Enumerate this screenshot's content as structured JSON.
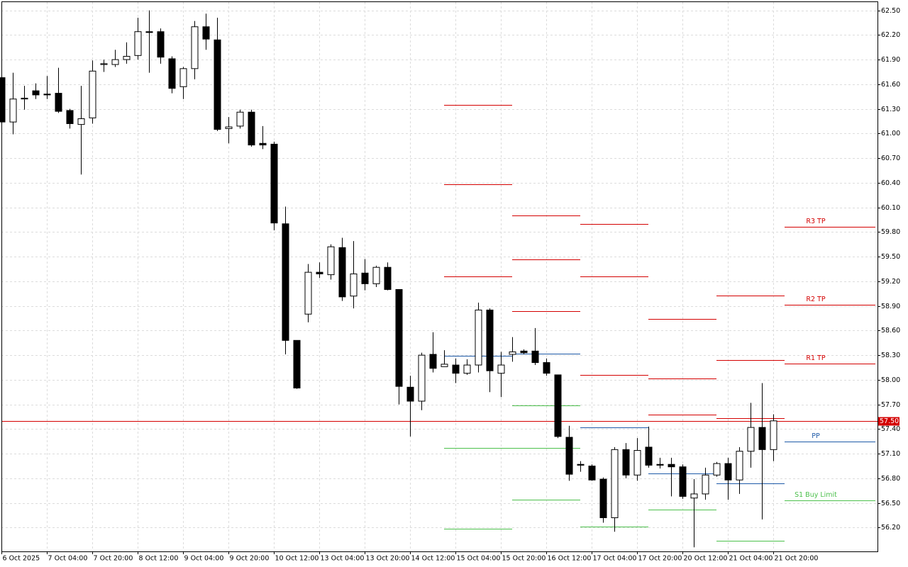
{
  "chart_data": {
    "type": "candlestick",
    "categories": [
      "6 Oct 2025",
      null,
      null,
      null,
      "7 Oct 04:00",
      null,
      null,
      null,
      "7 Oct 20:00",
      null,
      null,
      null,
      "8 Oct 12:00",
      null,
      null,
      null,
      "9 Oct 04:00",
      null,
      null,
      null,
      "9 Oct 20:00",
      null,
      null,
      null,
      "10 Oct 12:00",
      null,
      null,
      null,
      "13 Oct 04:00",
      null,
      null,
      null,
      "13 Oct 20:00",
      null,
      null,
      null,
      "14 Oct 12:00",
      null,
      null,
      null,
      "15 Oct 04:00",
      null,
      null,
      null,
      "15 Oct 20:00",
      null,
      null,
      null,
      "16 Oct 12:00",
      null,
      null,
      null,
      "17 Oct 04:00",
      null,
      null,
      null,
      "17 Oct 20:00",
      null,
      null,
      null,
      "20 Oct 12:00",
      null,
      null,
      null,
      "21 Oct 04:00",
      null,
      null,
      null,
      "21 Oct 20:00"
    ],
    "open": [
      61.68,
      61.14,
      61.42,
      61.52,
      61.48,
      61.49,
      61.28,
      61.11,
      61.19,
      61.84,
      61.84,
      61.9,
      61.95,
      62.24,
      62.24,
      61.91,
      61.57,
      61.79,
      62.3,
      62.14,
      61.06,
      61.09,
      61.26,
      60.88,
      60.87,
      59.9,
      58.48,
      58.8,
      59.31,
      59.28,
      59.61,
      59.02,
      59.3,
      59.17,
      59.37,
      59.1,
      57.91,
      57.74,
      58.31,
      58.16,
      58.18,
      58.08,
      58.18,
      58.85,
      58.08,
      58.31,
      58.35,
      58.35,
      58.21,
      58.06,
      57.3,
      56.97,
      56.95,
      56.79,
      56.32,
      57.15,
      56.84,
      57.18,
      56.97,
      56.97,
      56.94,
      56.56,
      56.61,
      56.84,
      56.98,
      56.78,
      57.13,
      57.42,
      57.15
    ],
    "high": [
      61.72,
      61.74,
      61.58,
      61.61,
      61.7,
      61.8,
      61.3,
      61.58,
      61.89,
      61.9,
      62.02,
      62.11,
      62.41,
      62.5,
      62.28,
      61.94,
      61.81,
      62.37,
      62.46,
      62.41,
      61.2,
      61.29,
      61.29,
      61.09,
      60.9,
      60.11,
      58.48,
      59.41,
      59.43,
      59.65,
      59.73,
      59.69,
      59.47,
      59.39,
      59.43,
      59.1,
      58.05,
      58.33,
      58.58,
      58.36,
      58.26,
      58.25,
      58.94,
      58.87,
      58.34,
      58.52,
      58.37,
      58.63,
      58.26,
      58.06,
      57.44,
      57.01,
      56.97,
      56.81,
      57.18,
      57.23,
      57.29,
      57.43,
      57.05,
      57.05,
      56.97,
      56.79,
      56.93,
      57.0,
      57.05,
      57.18,
      57.72,
      57.96,
      57.58
    ],
    "low": [
      61.12,
      60.99,
      61.29,
      61.42,
      61.42,
      61.25,
      61.06,
      60.5,
      61.12,
      61.75,
      61.81,
      61.85,
      61.9,
      61.74,
      61.85,
      61.49,
      61.42,
      61.66,
      62.02,
      61.03,
      60.88,
      61.06,
      60.84,
      60.81,
      59.82,
      58.31,
      57.89,
      58.7,
      59.24,
      59.22,
      58.96,
      58.87,
      59.09,
      59.13,
      59.09,
      57.7,
      57.31,
      57.63,
      58.09,
      58.18,
      57.96,
      58.06,
      58.09,
      57.85,
      57.79,
      58.22,
      58.31,
      58.18,
      58.05,
      57.29,
      56.77,
      56.88,
      56.77,
      56.26,
      56.15,
      56.8,
      56.77,
      56.93,
      56.92,
      56.58,
      56.55,
      55.96,
      56.54,
      56.82,
      56.54,
      56.61,
      56.93,
      56.3,
      57.01
    ],
    "close": [
      61.14,
      61.42,
      61.43,
      61.47,
      61.47,
      61.27,
      61.12,
      61.18,
      61.76,
      61.85,
      61.9,
      61.94,
      62.24,
      62.23,
      61.93,
      61.55,
      61.79,
      62.3,
      62.15,
      61.05,
      61.08,
      61.26,
      60.86,
      60.86,
      59.91,
      58.48,
      57.9,
      59.31,
      59.29,
      59.62,
      59.01,
      59.29,
      59.17,
      59.37,
      59.1,
      57.92,
      57.74,
      58.3,
      58.14,
      58.19,
      58.08,
      58.18,
      58.85,
      58.11,
      58.18,
      58.34,
      58.33,
      58.21,
      58.08,
      57.31,
      56.85,
      56.96,
      56.78,
      56.32,
      57.15,
      56.84,
      57.14,
      56.96,
      56.96,
      56.94,
      56.58,
      56.61,
      56.84,
      56.98,
      56.78,
      57.13,
      57.42,
      57.15,
      57.5
    ],
    "colors": {
      "up": "#ffffff",
      "down": "#000000",
      "outline": "#000000",
      "resistance": "#d40000",
      "pivot": "#1e5aa8",
      "support": "#4cc04c"
    },
    "levels": [
      {
        "from": 39,
        "to": 45,
        "resistance": [
          61.35,
          60.38,
          59.26
        ],
        "pivot": [
          58.29
        ],
        "support": [
          57.17,
          56.19
        ]
      },
      {
        "from": 45,
        "to": 51,
        "resistance": [
          60.0,
          59.47,
          58.84
        ],
        "pivot": [
          58.32
        ],
        "support": [
          57.69,
          57.17,
          56.54
        ]
      },
      {
        "from": 51,
        "to": 57,
        "resistance": [
          59.9,
          59.26,
          58.06
        ],
        "pivot": [
          57.42
        ],
        "support": [
          56.21
        ]
      },
      {
        "from": 57,
        "to": 63,
        "resistance": [
          58.74,
          58.02,
          57.58
        ],
        "pivot": [
          56.86
        ],
        "support": [
          56.42
        ]
      },
      {
        "from": 63,
        "to": 69,
        "resistance": [
          59.03,
          58.24,
          57.53
        ],
        "pivot": [
          56.74
        ],
        "support": [
          56.04
        ]
      },
      {
        "from": 69,
        "to": 77,
        "resistance": [
          59.86,
          58.91,
          58.2
        ],
        "resistance_labels": [
          "R3 TP",
          "R2 TP",
          "R1 TP"
        ],
        "pivot": [
          57.25
        ],
        "pivot_labels": [
          "PP"
        ],
        "support": [
          56.53
        ],
        "support_labels": [
          "S1 Buy Limit"
        ]
      }
    ],
    "current_price": {
      "value": 57.5,
      "label": "57.50",
      "color": "#d40000"
    },
    "ylim": [
      55.91,
      62.6
    ],
    "yticks": [
      {
        "value": 62.5,
        "label": "62.50"
      },
      {
        "value": 62.2,
        "label": "62.20"
      },
      {
        "value": 61.9,
        "label": "61.90"
      },
      {
        "value": 61.6,
        "label": "61.60"
      },
      {
        "value": 61.3,
        "label": "61.30"
      },
      {
        "value": 61.0,
        "label": "61.00"
      },
      {
        "value": 60.7,
        "label": "60.70"
      },
      {
        "value": 60.4,
        "label": "60.40"
      },
      {
        "value": 60.1,
        "label": "60.10"
      },
      {
        "value": 59.8,
        "label": "59.80"
      },
      {
        "value": 59.5,
        "label": "59.50"
      },
      {
        "value": 59.2,
        "label": "59.20"
      },
      {
        "value": 58.9,
        "label": "58.90"
      },
      {
        "value": 58.6,
        "label": "58.60"
      },
      {
        "value": 58.3,
        "label": "58.30"
      },
      {
        "value": 58.0,
        "label": "58.00"
      },
      {
        "value": 57.7,
        "label": "57.70"
      },
      {
        "value": 57.4,
        "label": "57.40"
      },
      {
        "value": 57.1,
        "label": "57.10"
      },
      {
        "value": 56.8,
        "label": "56.80"
      },
      {
        "value": 56.5,
        "label": "56.50"
      },
      {
        "value": 56.2,
        "label": "56.20"
      }
    ],
    "grid": true
  }
}
